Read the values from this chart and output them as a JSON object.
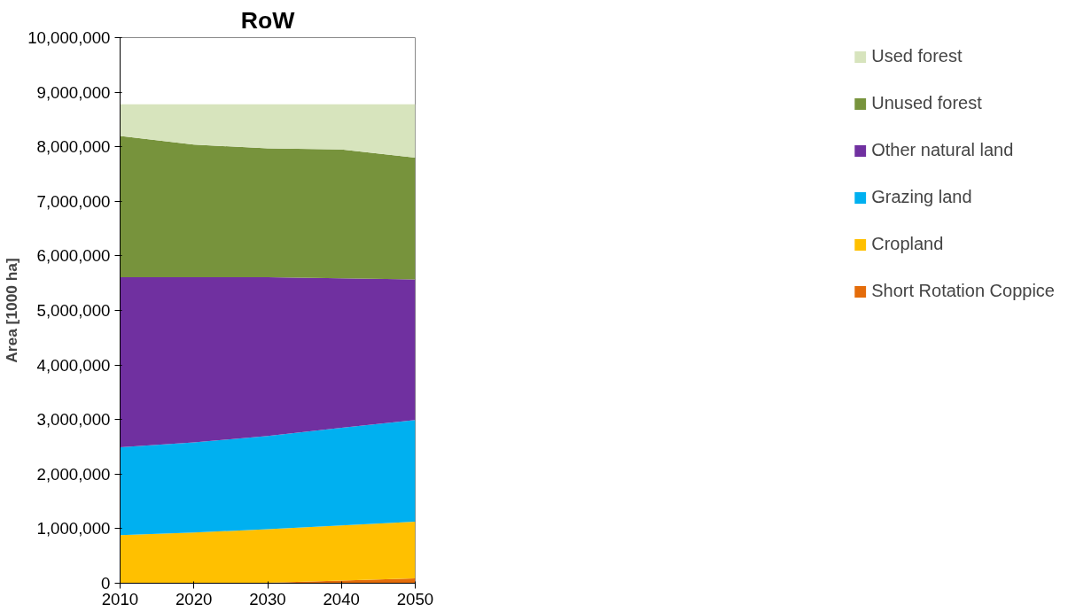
{
  "chart_data": {
    "type": "area",
    "stacked": true,
    "title": "RoW",
    "ylabel": "Area [1000 ha]",
    "x": [
      2010,
      2020,
      2030,
      2040,
      2050
    ],
    "xlim": [
      2010,
      2050
    ],
    "xticks": [
      2010,
      2020,
      2030,
      2040,
      2050
    ],
    "ylim": [
      0,
      10000000
    ],
    "yticks": [
      0,
      {
        "value": 1000000,
        "label": "1,000,000"
      },
      {
        "value": 2000000,
        "label": "2,000,000"
      },
      {
        "value": 3000000,
        "label": "3,000,000"
      },
      {
        "value": 4000000,
        "label": "4,000,000"
      },
      {
        "value": 5000000,
        "label": "5,000,000"
      },
      {
        "value": 6000000,
        "label": "6,000,000"
      },
      {
        "value": 7000000,
        "label": "7,000,000"
      },
      {
        "value": 8000000,
        "label": "8,000,000"
      },
      {
        "value": 9000000,
        "label": "9,000,000"
      },
      {
        "value": 10000000,
        "label": "10,000,000"
      }
    ],
    "grid": false,
    "legend": "right",
    "series": [
      {
        "name": "Short Rotation Coppice",
        "color": "#e46c0a",
        "values": [
          0,
          0,
          10000,
          50000,
          90000
        ]
      },
      {
        "name": "Cropland",
        "color": "#ffc000",
        "values": [
          880000,
          930000,
          980000,
          1010000,
          1040000
        ]
      },
      {
        "name": "Grazing land",
        "color": "#00b0f0",
        "values": [
          1610000,
          1650000,
          1710000,
          1790000,
          1860000
        ]
      },
      {
        "name": "Other natural land",
        "color": "#7030a0",
        "values": [
          3120000,
          3030000,
          2910000,
          2740000,
          2580000
        ]
      },
      {
        "name": "Unused forest",
        "color": "#77933c",
        "values": [
          2590000,
          2430000,
          2360000,
          2360000,
          2230000
        ]
      },
      {
        "name": "Used forest",
        "color": "#d7e4bd",
        "values": [
          580000,
          740000,
          810000,
          830000,
          980000
        ]
      }
    ]
  }
}
